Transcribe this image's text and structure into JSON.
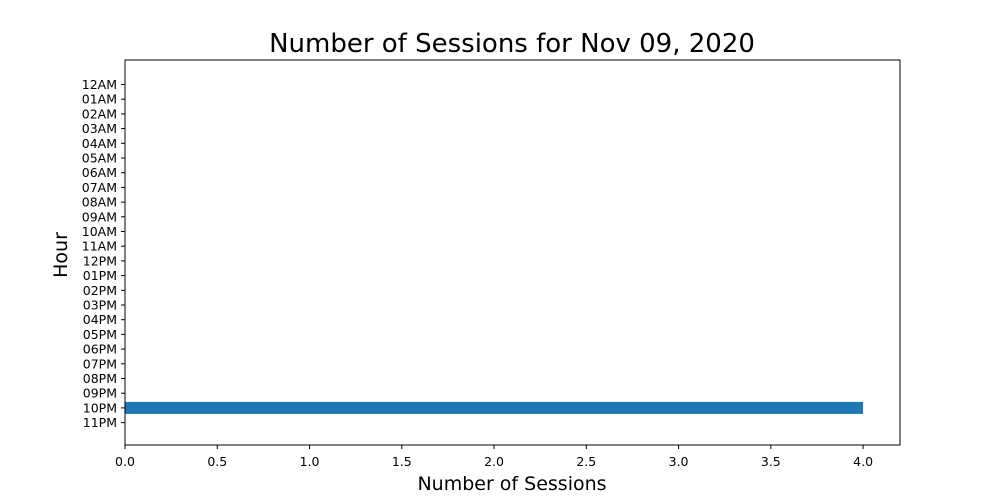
{
  "chart_data": {
    "type": "bar",
    "orientation": "horizontal",
    "title": "Number of Sessions for Nov 09, 2020",
    "xlabel": "Number of Sessions",
    "ylabel": "Hour",
    "categories": [
      "12AM",
      "01AM",
      "02AM",
      "03AM",
      "04AM",
      "05AM",
      "06AM",
      "07AM",
      "08AM",
      "09AM",
      "10AM",
      "11AM",
      "12PM",
      "01PM",
      "02PM",
      "03PM",
      "04PM",
      "05PM",
      "06PM",
      "07PM",
      "08PM",
      "09PM",
      "10PM",
      "11PM"
    ],
    "values": [
      0,
      0,
      0,
      0,
      0,
      0,
      0,
      0,
      0,
      0,
      0,
      0,
      0,
      0,
      0,
      0,
      0,
      0,
      0,
      0,
      0,
      0,
      4,
      0
    ],
    "xlim": [
      0,
      4.2
    ],
    "xticks": [
      0.0,
      0.5,
      1.0,
      1.5,
      2.0,
      2.5,
      3.0,
      3.5,
      4.0
    ],
    "xtick_labels": [
      "0.0",
      "0.5",
      "1.0",
      "1.5",
      "2.0",
      "2.5",
      "3.0",
      "3.5",
      "4.0"
    ],
    "bar_color": "#1f77b4",
    "grid": false,
    "legend": "none"
  }
}
